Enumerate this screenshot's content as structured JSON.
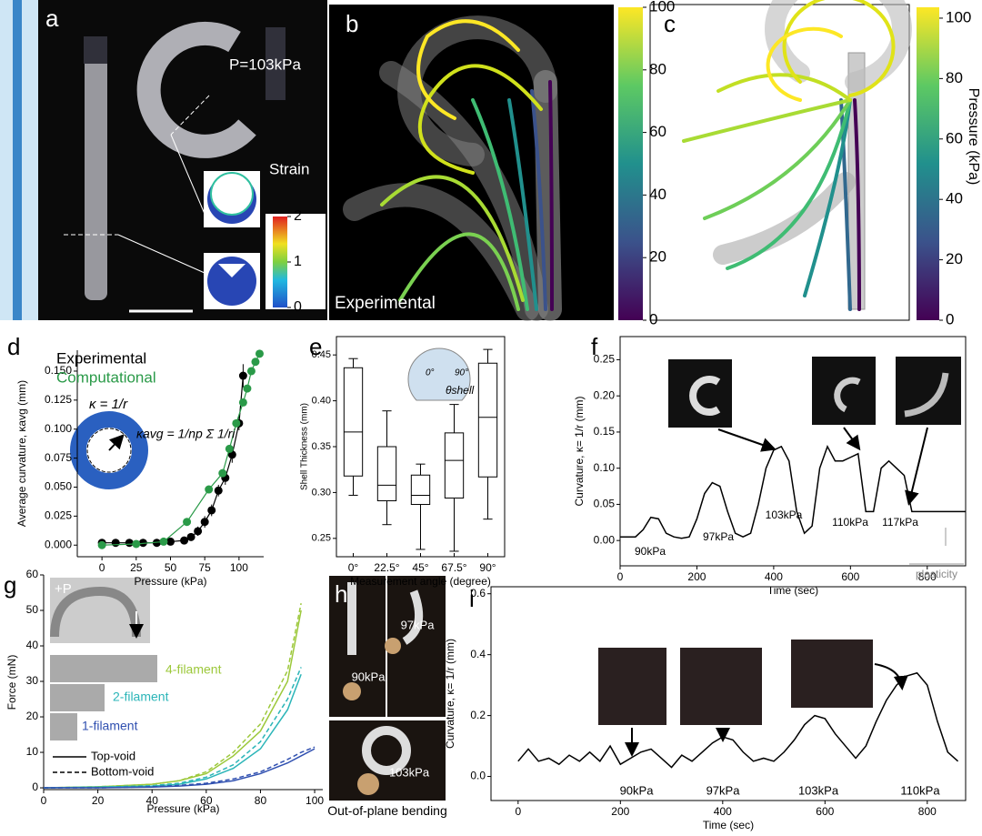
{
  "panel_letters": [
    "a",
    "b",
    "c",
    "d",
    "e",
    "f",
    "g",
    "h",
    "i"
  ],
  "panel_a": {
    "pressure": "P=103kPa",
    "strain_title": "Strain",
    "strain_lim": [
      0,
      2
    ],
    "strain_ticks": [
      2,
      1,
      0
    ]
  },
  "panel_b": {
    "caption": "Experimental",
    "colorbar_lim": [
      0,
      100
    ],
    "colorbar_ticks": [
      100,
      80,
      60,
      40,
      20,
      0
    ]
  },
  "panel_c": {
    "colorbar_label": "Pressure (kPa)",
    "colorbar_lim": [
      0,
      103.6
    ],
    "colorbar_ticks": [
      100,
      80,
      60,
      40,
      20,
      0
    ]
  },
  "panel_h": {
    "labels": [
      "97kPa",
      "90kPa",
      "103kPa"
    ],
    "caption": "Out-of-plane bending"
  },
  "chart_data": [
    {
      "type": "scatter",
      "x_label": "Pressure (kPa)",
      "y_label": "Average curvature, κavg (mm)",
      "formula_1": "κ = 1/r",
      "formula_2": "κavg = 1/np Σ 1/ri",
      "xlim": [
        -18,
        118
      ],
      "xticks": [
        0,
        25,
        50,
        75,
        100
      ],
      "ylim": [
        -0.01,
        0.168
      ],
      "yticks": [
        {
          "value": 0,
          "label": "0.000"
        },
        0.025,
        {
          "value": 0.05,
          "label": "0.050"
        },
        0.075,
        {
          "value": 0.1,
          "label": "0.100"
        },
        0.125,
        {
          "value": 0.15,
          "label": "0.150"
        }
      ],
      "series": [
        {
          "name": "Experimental",
          "color": "#000000",
          "x": [
            0,
            10,
            20,
            30,
            40,
            50,
            60,
            65,
            70,
            75,
            80,
            85,
            90,
            95,
            100,
            103
          ],
          "values": [
            0.002,
            0.002,
            0.002,
            0.002,
            0.002,
            0.003,
            0.004,
            0.007,
            0.012,
            0.02,
            0.03,
            0.047,
            0.058,
            0.078,
            0.105,
            0.146
          ],
          "errors": [
            0.002,
            0.002,
            0.002,
            0.002,
            0.002,
            0.002,
            0.002,
            0.003,
            0.004,
            0.005,
            0.005,
            0.005,
            0.006,
            0.007,
            0.006,
            0.01
          ]
        },
        {
          "name": "Computational",
          "color": "#2a9a48",
          "x": [
            0,
            25,
            45,
            62,
            78,
            88,
            93,
            98,
            103,
            106,
            109,
            112,
            115
          ],
          "values": [
            0,
            0.001,
            0.003,
            0.02,
            0.048,
            0.062,
            0.083,
            0.105,
            0.123,
            0.135,
            0.15,
            0.158,
            0.165
          ]
        }
      ]
    },
    {
      "type": "box",
      "x_label": "Measurement angle (degree)",
      "y_label": "Shell Thickness (mm)",
      "inset_labels": [
        "0°",
        "90°",
        "θshell"
      ],
      "categories": [
        "0°",
        "22.5°",
        "45°",
        "67.5°",
        "90°"
      ],
      "ylim": [
        0.23,
        0.47
      ],
      "yticks": [
        0.25,
        {
          "value": 0.3,
          "label": "0.30"
        },
        0.35,
        {
          "value": 0.4,
          "label": "0.40"
        },
        0.45
      ],
      "min": [
        0.297,
        0.265,
        0.238,
        0.236,
        0.271
      ],
      "q1": [
        0.318,
        0.291,
        0.287,
        0.294,
        0.317
      ],
      "median": [
        0.366,
        0.308,
        0.297,
        0.335,
        0.382
      ],
      "q3": [
        0.436,
        0.35,
        0.319,
        0.365,
        0.441
      ],
      "max": [
        0.446,
        0.389,
        0.331,
        0.396,
        0.456
      ]
    },
    {
      "type": "line",
      "x_label": "Time (sec)",
      "y_label": "Curvature, κ= 1/r (mm)",
      "color": "#000000",
      "annotations": [
        "90kPa",
        "97kPa",
        "103kPa",
        "110kPa",
        "117kPa",
        "plasticity"
      ],
      "xlim": [
        0,
        900
      ],
      "xticks": [
        0,
        200,
        400,
        600,
        800
      ],
      "ylim": [
        -0.035,
        0.282
      ],
      "yticks": [
        {
          "value": 0,
          "label": "0.00"
        },
        0.05,
        {
          "value": 0.1,
          "label": "0.10"
        },
        0.15,
        {
          "value": 0.2,
          "label": "0.20"
        },
        0.25
      ],
      "x": [
        0,
        20,
        40,
        60,
        80,
        100,
        120,
        140,
        160,
        180,
        200,
        220,
        240,
        260,
        280,
        300,
        320,
        340,
        360,
        380,
        400,
        420,
        440,
        460,
        480,
        500,
        520,
        540,
        560,
        580,
        600,
        620,
        640,
        660,
        680,
        700,
        720,
        740,
        760,
        780,
        800,
        820,
        840,
        860,
        880,
        900
      ],
      "values": [
        0.005,
        0.005,
        0.005,
        0.015,
        0.032,
        0.03,
        0.01,
        0.005,
        0.003,
        0.005,
        0.03,
        0.065,
        0.08,
        0.075,
        0.04,
        0.01,
        0.005,
        0.01,
        0.05,
        0.1,
        0.125,
        0.13,
        0.11,
        0.04,
        0.01,
        0.02,
        0.1,
        0.13,
        0.11,
        0.11,
        0.115,
        0.12,
        0.04,
        0.04,
        0.1,
        0.11,
        0.1,
        0.09,
        0.04,
        0.04,
        0.04,
        0.04,
        0.04,
        0.04,
        0.04,
        0.04
      ]
    },
    {
      "type": "line",
      "x_label": "Pressure (kPa)",
      "y_label": "Force (mN)",
      "inset_label": "+P",
      "styles": [
        "Top-void",
        "Bottom-void"
      ],
      "xlim": [
        0,
        103
      ],
      "xticks": [
        0,
        20,
        40,
        60,
        80,
        100
      ],
      "ylim": [
        -0.5,
        60
      ],
      "yticks": [
        0,
        10,
        20,
        30,
        40,
        50,
        60
      ],
      "x": [
        0,
        20,
        40,
        50,
        60,
        70,
        80,
        90,
        95,
        100
      ],
      "series": [
        {
          "name": "4-filament",
          "color": "#9cc83a",
          "values": [
            0,
            0.3,
            1,
            2,
            4,
            9,
            16,
            30,
            50,
            null
          ],
          "bottom_values": [
            0,
            0.3,
            1,
            2,
            4.5,
            10,
            18,
            33,
            52,
            null
          ]
        },
        {
          "name": "2-filament",
          "color": "#2bb5b8",
          "values": [
            0,
            0.2,
            0.5,
            1,
            2.5,
            5.5,
            11,
            22,
            32,
            null
          ],
          "bottom_values": [
            0,
            0.2,
            0.6,
            1.3,
            3,
            6.5,
            13,
            25,
            34,
            null
          ]
        },
        {
          "name": "1-filament",
          "color": "#3050b0",
          "values": [
            0,
            0,
            0.2,
            0.5,
            1,
            2,
            4,
            7,
            9,
            11
          ],
          "bottom_values": [
            0,
            0,
            0.3,
            0.7,
            1.3,
            2.5,
            4.5,
            8,
            10,
            11.5
          ]
        }
      ]
    },
    {
      "type": "line",
      "x_label": "Time (sec)",
      "y_label": "Curvature, κ= 1/r (mm)",
      "color": "#000000",
      "annotations": [
        "90kPa",
        "97kPa",
        "103kPa",
        "110kPa"
      ],
      "xlim": [
        -53,
        875
      ],
      "xticks": [
        0,
        200,
        400,
        600,
        800
      ],
      "ylim": [
        -0.079,
        0.623
      ],
      "yticks": [
        {
          "value": 0,
          "label": "0.0"
        },
        0.2,
        0.4,
        0.6
      ],
      "x": [
        0,
        20,
        40,
        60,
        80,
        100,
        120,
        140,
        160,
        180,
        200,
        220,
        240,
        260,
        280,
        300,
        320,
        340,
        360,
        380,
        400,
        420,
        440,
        460,
        480,
        500,
        520,
        540,
        560,
        580,
        600,
        620,
        640,
        660,
        680,
        700,
        720,
        740,
        760,
        780,
        800,
        820,
        840,
        860
      ],
      "values": [
        0.05,
        0.09,
        0.05,
        0.06,
        0.04,
        0.07,
        0.05,
        0.08,
        0.05,
        0.1,
        0.04,
        0.06,
        0.08,
        0.09,
        0.06,
        0.03,
        0.07,
        0.05,
        0.08,
        0.11,
        0.13,
        0.12,
        0.08,
        0.05,
        0.06,
        0.05,
        0.08,
        0.12,
        0.17,
        0.2,
        0.19,
        0.14,
        0.1,
        0.06,
        0.1,
        0.18,
        0.25,
        0.3,
        0.33,
        0.34,
        0.3,
        0.18,
        0.08,
        0.05
      ]
    }
  ]
}
